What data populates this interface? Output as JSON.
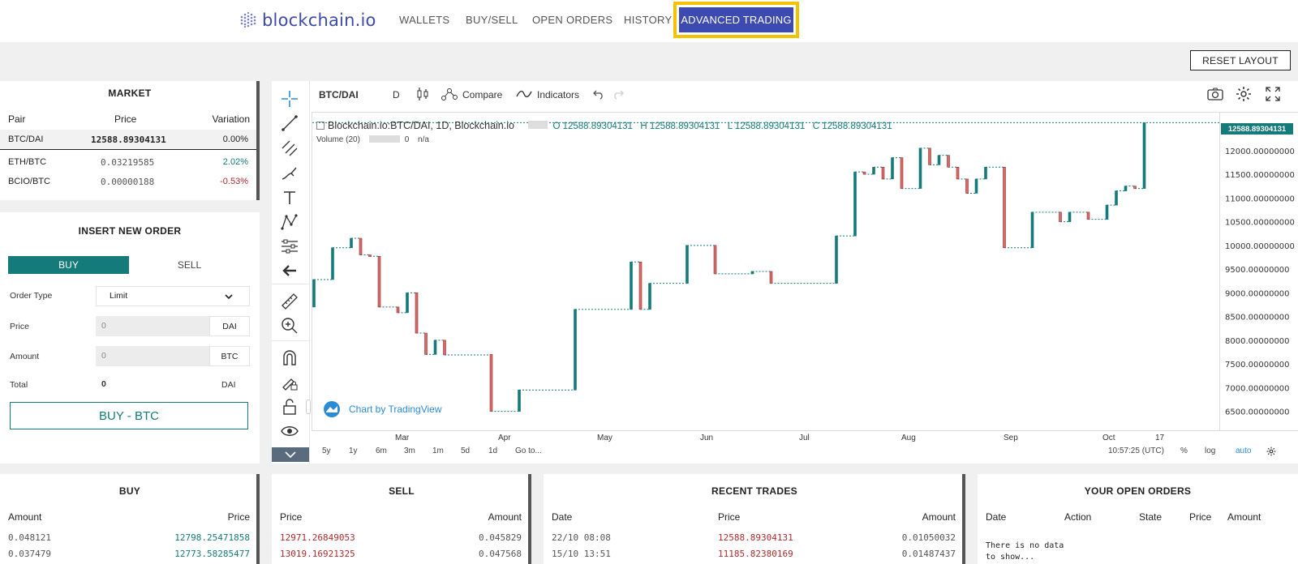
{
  "brand": "blockchain.io",
  "nav": {
    "wallets": "WALLETS",
    "buysell": "BUY/SELL",
    "open_orders": "OPEN ORDERS",
    "history": "HISTORY",
    "advanced": "ADVANCED TRADING"
  },
  "reset_layout": "RESET LAYOUT",
  "market": {
    "title": "MARKET",
    "headers": [
      "Pair",
      "Price",
      "Variation"
    ],
    "rows": [
      {
        "pair": "BTC/DAI",
        "price": "12588.89304131",
        "variation": "0.00%"
      },
      {
        "pair": "ETH/BTC",
        "price": "0.03219585",
        "variation": "2.02%"
      },
      {
        "pair": "BCIO/BTC",
        "price": "0.00000188",
        "variation": "-0.53%"
      }
    ]
  },
  "order": {
    "title": "INSERT NEW ORDER",
    "buy_tab": "BUY",
    "sell_tab": "SELL",
    "order_type_label": "Order Type",
    "order_type_value": "Limit",
    "price_label": "Price",
    "price_value": "0",
    "price_unit": "DAI",
    "amount_label": "Amount",
    "amount_value": "0",
    "amount_unit": "BTC",
    "total_label": "Total",
    "total_value": "0",
    "total_unit": "DAI",
    "submit": "BUY - BTC"
  },
  "chart_header": {
    "symbol": "BTC/DAI",
    "interval": "D",
    "compare": "Compare",
    "indicators": "Indicators",
    "legend_title": "Blockchain.io:BTC/DAI, 1D, Blockchain.io",
    "ohlc": {
      "o": "O 12588.89304131",
      "h": "H 12588.89304131",
      "l": "L 12588.89304131",
      "c": "C 12588.89304131"
    },
    "volume_label": "Volume (20)",
    "volume_zero": "0",
    "volume_na": "n/a",
    "last_price": "12588.89304131",
    "attribution": "Chart by TradingView",
    "time": "10:57:25 (UTC)",
    "pct": "%",
    "log": "log",
    "auto": "auto",
    "timeframes": [
      "5y",
      "1y",
      "6m",
      "3m",
      "1m",
      "5d",
      "1d",
      "Go to..."
    ]
  },
  "chart_data": {
    "type": "candlestick",
    "x_ticks": [
      "Mar",
      "Apr",
      "May",
      "Jun",
      "Jul",
      "Aug",
      "Sep",
      "Oct",
      "17"
    ],
    "y_ticks": [
      "12000.00000000",
      "11500.00000000",
      "11000.00000000",
      "10500.00000000",
      "10000.00000000",
      "9500.00000000",
      "9000.00000000",
      "8500.00000000",
      "8000.00000000",
      "7500.00000000",
      "7000.00000000",
      "6500.00000000"
    ],
    "ylim": [
      6100,
      12800
    ],
    "candles": [
      {
        "t": 0,
        "o": 8700,
        "c": 9280
      },
      {
        "t": 2,
        "o": 9280,
        "c": 9950
      },
      {
        "t": 4,
        "o": 9950,
        "c": 10150
      },
      {
        "t": 5,
        "o": 10150,
        "c": 9800
      },
      {
        "t": 6,
        "o": 9800,
        "c": 9770
      },
      {
        "t": 7,
        "o": 9770,
        "c": 8700
      },
      {
        "t": 9,
        "o": 8700,
        "c": 8580
      },
      {
        "t": 10,
        "o": 8580,
        "c": 9000
      },
      {
        "t": 11,
        "o": 9000,
        "c": 8150
      },
      {
        "t": 12,
        "o": 8150,
        "c": 7700
      },
      {
        "t": 13,
        "o": 7700,
        "c": 8000
      },
      {
        "t": 14,
        "o": 8000,
        "c": 7690
      },
      {
        "t": 19,
        "o": 7700,
        "c": 6500
      },
      {
        "t": 22,
        "o": 6500,
        "c": 6950
      },
      {
        "t": 28,
        "o": 6950,
        "c": 8650
      },
      {
        "t": 34,
        "o": 8650,
        "c": 9650
      },
      {
        "t": 35,
        "o": 9650,
        "c": 8650
      },
      {
        "t": 36,
        "o": 8650,
        "c": 9200
      },
      {
        "t": 40,
        "o": 9200,
        "c": 10000
      },
      {
        "t": 43,
        "o": 10000,
        "c": 9400
      },
      {
        "t": 47,
        "o": 9400,
        "c": 9450
      },
      {
        "t": 49,
        "o": 9450,
        "c": 9200
      },
      {
        "t": 56,
        "o": 9200,
        "c": 10200
      },
      {
        "t": 58,
        "o": 10200,
        "c": 11550
      },
      {
        "t": 59,
        "o": 11550,
        "c": 11500
      },
      {
        "t": 60,
        "o": 11500,
        "c": 11650
      },
      {
        "t": 61,
        "o": 11650,
        "c": 11400
      },
      {
        "t": 62,
        "o": 11400,
        "c": 11850
      },
      {
        "t": 63,
        "o": 11850,
        "c": 11200
      },
      {
        "t": 65,
        "o": 11200,
        "c": 12050
      },
      {
        "t": 66,
        "o": 12050,
        "c": 11700
      },
      {
        "t": 67,
        "o": 11700,
        "c": 11900
      },
      {
        "t": 68,
        "o": 11900,
        "c": 11650
      },
      {
        "t": 69,
        "o": 11650,
        "c": 11400
      },
      {
        "t": 70,
        "o": 11400,
        "c": 11100
      },
      {
        "t": 71,
        "o": 11100,
        "c": 11400
      },
      {
        "t": 72,
        "o": 11400,
        "c": 11650
      },
      {
        "t": 74,
        "o": 11650,
        "c": 9950
      },
      {
        "t": 77,
        "o": 9950,
        "c": 10700
      },
      {
        "t": 80,
        "o": 10700,
        "c": 10500
      },
      {
        "t": 81,
        "o": 10500,
        "c": 10700
      },
      {
        "t": 83,
        "o": 10700,
        "c": 10550
      },
      {
        "t": 85,
        "o": 10550,
        "c": 10850
      },
      {
        "t": 86,
        "o": 10850,
        "c": 11150
      },
      {
        "t": 87,
        "o": 11150,
        "c": 11250
      },
      {
        "t": 88,
        "o": 11250,
        "c": 11200
      },
      {
        "t": 89,
        "o": 11200,
        "c": 12588
      }
    ]
  },
  "buy_panel": {
    "title": "BUY",
    "headers": [
      "Amount",
      "Price"
    ],
    "rows": [
      {
        "amount": "0.048121",
        "price": "12798.25471858"
      },
      {
        "amount": "0.037479",
        "price": "12773.58285477"
      }
    ]
  },
  "sell_panel": {
    "title": "SELL",
    "headers": [
      "Price",
      "Amount"
    ],
    "rows": [
      {
        "price": "12971.26849053",
        "amount": "0.045829"
      },
      {
        "price": "13019.16921325",
        "amount": "0.047568"
      }
    ]
  },
  "trades_panel": {
    "title": "RECENT TRADES",
    "headers": [
      "Date",
      "Price",
      "Amount"
    ],
    "rows": [
      {
        "date": "22/10 08:08",
        "price": "12588.89304131",
        "amount": "0.01050032"
      },
      {
        "date": "15/10 13:51",
        "price": "11185.82380169",
        "amount": "0.01487437"
      }
    ]
  },
  "open_orders_panel": {
    "title": "YOUR OPEN ORDERS",
    "headers": [
      "Date",
      "Action",
      "State",
      "Price",
      "Amount"
    ],
    "empty_line1": "There is no data",
    "empty_line2": "to show..."
  },
  "colors": {
    "accent": "#157a7a",
    "brand": "#3c4ab1",
    "down": "#b02a2a",
    "highlight": "#f2c300"
  }
}
